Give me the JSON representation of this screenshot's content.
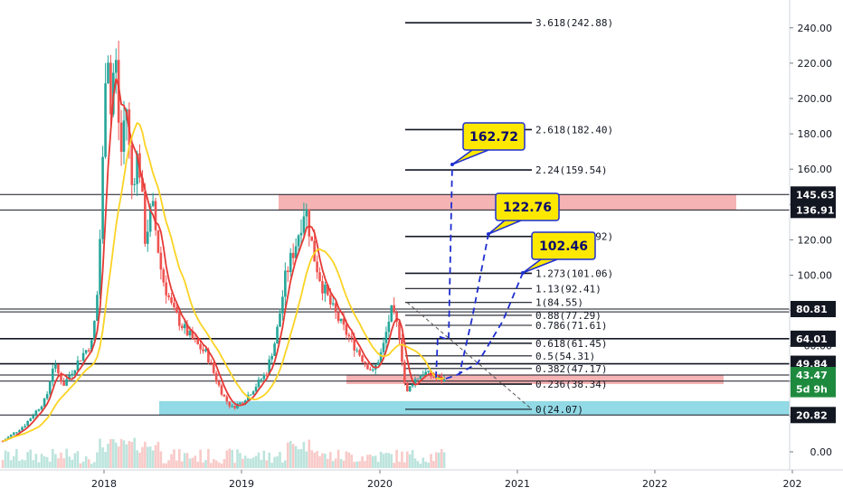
{
  "chart_data": {
    "type": "candlestick",
    "x_axis": {
      "ticks": [
        "2018",
        "2019",
        "2020",
        "2021",
        "2022",
        "202"
      ]
    },
    "y_axis": {
      "ticks": [
        "0.00",
        "20.00",
        "40.00",
        "60.00",
        "80.00",
        "100.00",
        "120.00",
        "140.00",
        "160.00",
        "180.00",
        "200.00",
        "220.00",
        "240.00"
      ],
      "range": [
        -12,
        256
      ]
    },
    "fib_levels": [
      {
        "label": "3.618(242.88)",
        "value": 242.88
      },
      {
        "label": "2.618(182.40)",
        "value": 182.4
      },
      {
        "label": "2.24(159.54)",
        "value": 159.54
      },
      {
        "label": "1.618(121.92)",
        "value": 121.92
      },
      {
        "label": "1.273(101.06)",
        "value": 101.06
      },
      {
        "label": "1.13(92.41)",
        "value": 92.41
      },
      {
        "label": "1(84.55)",
        "value": 84.55
      },
      {
        "label": "0.88(77.29)",
        "value": 77.29
      },
      {
        "label": "0.786(71.61)",
        "value": 71.61
      },
      {
        "label": "0.618(61.45)",
        "value": 61.45
      },
      {
        "label": "0.5(54.31)",
        "value": 54.31
      },
      {
        "label": "0.382(47.17)",
        "value": 47.17
      },
      {
        "label": "0.236(38.34)",
        "value": 38.34
      },
      {
        "label": "0(24.07)",
        "value": 24.07
      }
    ],
    "price_tags": [
      {
        "label": "145.63",
        "value": 145.63,
        "bg": "#131722",
        "fg": "#ffffff"
      },
      {
        "label": "136.91",
        "value": 136.91,
        "bg": "#131722",
        "fg": "#ffffff"
      },
      {
        "label": "80.81",
        "value": 80.81,
        "bg": "#131722",
        "fg": "#ffffff"
      },
      {
        "label": "64.01",
        "value": 64.01,
        "bg": "#131722",
        "fg": "#ffffff"
      },
      {
        "label": "49.84",
        "value": 49.84,
        "bg": "#131722",
        "fg": "#ffffff"
      },
      {
        "label": "43.47",
        "value": 43.47,
        "bg": "#1e8a3e",
        "fg": "#ffffff"
      },
      {
        "label": "5d 9h",
        "value": 35.5,
        "bg": "#1e8a3e",
        "fg": "#ffffff"
      },
      {
        "label": "20.82",
        "value": 20.82,
        "bg": "#131722",
        "fg": "#ffffff"
      }
    ],
    "callouts": [
      {
        "label": "162.72",
        "value": 162.72
      },
      {
        "label": "122.76",
        "value": 122.76
      },
      {
        "label": "102.46",
        "value": 102.46
      }
    ],
    "zones": [
      {
        "name": "resistance",
        "from": 136.91,
        "to": 145.63,
        "color": "#f4a6a6"
      },
      {
        "name": "support-mid",
        "from": 38.34,
        "to": 43.47,
        "color": "#f4a6a6"
      },
      {
        "name": "support-low",
        "from": 20.82,
        "to": 28.7,
        "color": "#7fd3e0"
      }
    ],
    "colors": {
      "up": "#26a69a",
      "down": "#ef5350",
      "ma_fast": "#e53935",
      "ma_slow": "#fbd323",
      "callout_bg": "#ffe800",
      "callout_border": "#1f2fd0"
    }
  }
}
